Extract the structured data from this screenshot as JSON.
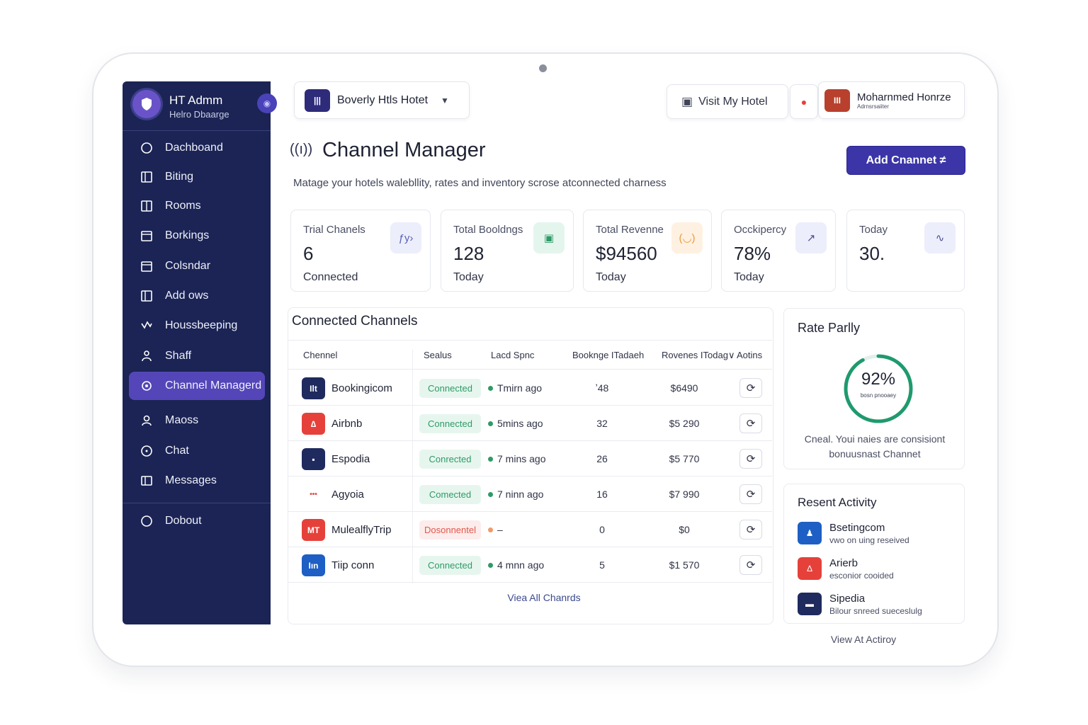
{
  "sidebar": {
    "admin_name": "HT Admm",
    "admin_sub": "Helro Dbaarge",
    "items": [
      {
        "label": "Dachboand",
        "icon": "circle-icon"
      },
      {
        "label": "Biting",
        "icon": "square-icon"
      },
      {
        "label": "Rooms",
        "icon": "door-icon"
      },
      {
        "label": "Borkings",
        "icon": "calendar-icon"
      },
      {
        "label": "Colsndar",
        "icon": "calendar-icon"
      },
      {
        "label": "Add ows",
        "icon": "square-icon"
      },
      {
        "label": "Houssbeeping",
        "icon": "broom-icon"
      },
      {
        "label": "Shaff",
        "icon": "staff-icon"
      },
      {
        "label": "Channel Managerd",
        "icon": "channel-icon"
      },
      {
        "label": "Maoss",
        "icon": "user-icon"
      },
      {
        "label": "Chat",
        "icon": "chat-icon"
      },
      {
        "label": "Messages",
        "icon": "message-icon"
      }
    ],
    "logout_label": "Dobout"
  },
  "header": {
    "hotel_name": "Boverly Htls Hotet",
    "visit_label": "Visit My Hotel",
    "user_name": "Moharnmed Honrze",
    "user_role": "Adrnsrsaiiter"
  },
  "main": {
    "title": "Channel Manager",
    "description": "Matage your hotels walebllity, rates and inventory scrose atconnected charness",
    "add_button": "Add Cnannet ≠",
    "stats": [
      {
        "label": "Trial Chanels",
        "value": "6",
        "sub": "Connected",
        "icon": "channels-icon",
        "glyph": "ƒy›"
      },
      {
        "label": "Total Booldngs",
        "value": "128",
        "sub": "Today",
        "icon": "bookings-icon",
        "glyph": "▣"
      },
      {
        "label": "Total Revenne",
        "value": "$94560",
        "sub": "Today",
        "icon": "revenue-icon",
        "glyph": "(◡)"
      },
      {
        "label": "Occkipercy",
        "value": "78%",
        "sub": "Today",
        "icon": "trend-icon",
        "glyph": "↗"
      },
      {
        "label": "Today",
        "value": "30.",
        "sub": "",
        "icon": "chart-icon",
        "glyph": "∿"
      }
    ]
  },
  "channels": {
    "title": "Connected Channels",
    "columns": [
      "Chennel",
      "Sealus",
      "Lacd Spnc",
      "Booknge ITadaeh",
      "Rovenes ITodag∨",
      "Aotins"
    ],
    "rows": [
      {
        "name": "Bookingicom",
        "status": "Connected",
        "ok": true,
        "sync": "Tmirn ago",
        "bookings": "ʼ48",
        "revenue": "$6490",
        "logo": "Ilt",
        "color": "#1f2a5e"
      },
      {
        "name": "Airbnb",
        "status": "Connected",
        "ok": true,
        "sync": "5mins ago",
        "bookings": "32",
        "revenue": "$5 290",
        "logo": "∆",
        "color": "#e5413a"
      },
      {
        "name": "Espodia",
        "status": "Conrected",
        "ok": true,
        "sync": "7 mins ago",
        "bookings": "26",
        "revenue": "$5 770",
        "logo": "▪",
        "color": "#1f2a5e"
      },
      {
        "name": "Agyoia",
        "status": "Comected",
        "ok": true,
        "sync": "7 ninn ago",
        "bookings": "16",
        "revenue": "$7 990",
        "logo": "•••",
        "color": "#ffffff"
      },
      {
        "name": "MulealflyTrip",
        "status": "Dosonnentel",
        "ok": false,
        "sync": "–",
        "bookings": "0",
        "revenue": "$0",
        "logo": "MT",
        "color": "#e5413a"
      },
      {
        "name": "Tiip conn",
        "status": "Connected",
        "ok": true,
        "sync": "4 mnn ago",
        "bookings": "5",
        "revenue": "$1 570",
        "logo": "Iın",
        "color": "#1d5fc4"
      }
    ],
    "view_all": "Viea All Chanrds"
  },
  "rate_parity": {
    "title": "Rate Parlly",
    "percent": 92,
    "percent_label": "92%",
    "ring_sub": "bosn pnooaey",
    "note": "Cneal. Youi naies are consisiont bonuusnast Channet"
  },
  "activity": {
    "title": "Resent Activity",
    "items": [
      {
        "name": "Bsetingcom",
        "desc": "vwo on uing reseived",
        "logo": "♟",
        "color": "#1d5fc4"
      },
      {
        "name": "Arierb",
        "desc": "esconior cooided",
        "logo": "∆",
        "color": "#e5413a"
      },
      {
        "name": "Sipedia",
        "desc": "Bilour snreed sueceslulg",
        "logo": "▬",
        "color": "#1f2a5e"
      }
    ],
    "view_all": "View At Actiroy"
  },
  "colors": {
    "sidebar": "#1b2454",
    "accent": "#3b35a8",
    "connected": "#2f9a66",
    "disconnected": "#e0584a"
  }
}
